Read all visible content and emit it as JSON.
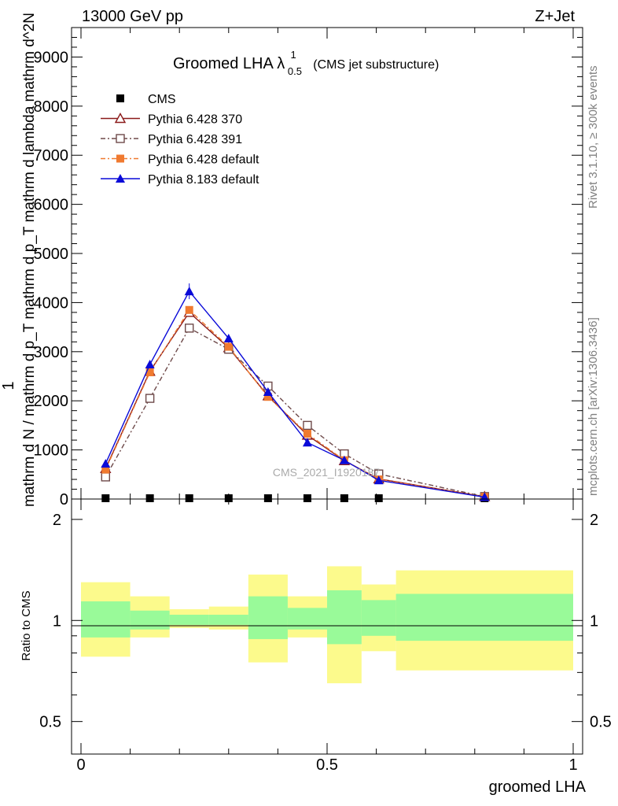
{
  "header": {
    "energy_label": "13000 GeV pp",
    "process_label": "Z+Jet"
  },
  "side_labels": {
    "rivet": "Rivet 3.1.10, ≥ 300k events",
    "mcplots": "mcplots.cern.ch [arXiv:1306.3436]"
  },
  "watermark": "CMS_2021_I1920187",
  "chart_data": [
    {
      "panel": "main",
      "type": "line",
      "title": "Groomed LHA λ",
      "title_superscript": "1",
      "title_subscript": "0.5",
      "title_suffix": "(CMS jet substructure)",
      "ylabel_numerator": "1",
      "ylabel": "mathrm d N / mathrm d p_T mathrm d p_T mathrm d lambda mathrm d^2N",
      "xlim": [
        -0.02,
        1.0
      ],
      "ylim": [
        0,
        9600
      ],
      "yticks": [
        0,
        1000,
        2000,
        3000,
        4000,
        5000,
        6000,
        7000,
        8000,
        9000
      ],
      "ytick_labels": [
        "0",
        "1000",
        "2000",
        "3000",
        "4000",
        "5000",
        "6000",
        "7000",
        "8000",
        "9000"
      ],
      "legend_position": "top-left",
      "x": [
        0.05,
        0.14,
        0.22,
        0.3,
        0.38,
        0.46,
        0.535,
        0.605,
        0.82
      ],
      "series": [
        {
          "name": "CMS",
          "color": "#000000",
          "marker": "square-filled",
          "values": [
            0,
            0,
            0,
            0,
            0,
            0,
            0,
            0,
            0
          ]
        },
        {
          "name": "Pythia 6.428 370",
          "color": "#8b1a1a",
          "marker": "triangle-open",
          "line": "solid",
          "values": [
            620,
            2600,
            3800,
            3080,
            2100,
            1300,
            780,
            410,
            50
          ]
        },
        {
          "name": "Pythia 6.428 391",
          "color": "#6e4a4a",
          "marker": "square-open",
          "line": "dashdot",
          "values": [
            450,
            2050,
            3480,
            3050,
            2300,
            1500,
            920,
            510,
            50
          ]
        },
        {
          "name": "Pythia 6.428 default",
          "color": "#f07a30",
          "marker": "square-filled",
          "line": "dashdot",
          "values": [
            600,
            2580,
            3850,
            3100,
            2080,
            1330,
            790,
            400,
            45
          ]
        },
        {
          "name": "Pythia 8.183 default",
          "color": "#0a0ad8",
          "marker": "triangle-filled",
          "line": "solid",
          "values": [
            720,
            2740,
            4230,
            3270,
            2180,
            1150,
            790,
            380,
            40
          ]
        }
      ]
    },
    {
      "panel": "ratio",
      "type": "area",
      "ylabel": "Ratio to CMS",
      "xlabel": "groomed LHA",
      "ylim": [
        0.4,
        2.3
      ],
      "yscale": "log",
      "yticks": [
        0.5,
        1,
        2
      ],
      "ytick_labels": [
        "0.5",
        "1",
        "2"
      ],
      "xticks": [
        0,
        0.5,
        1
      ],
      "xtick_labels": [
        "0",
        "0.5",
        "1"
      ],
      "band_colors": {
        "inner": "#99fa99",
        "outer": "#fcfa8c"
      },
      "bins": [
        {
          "lo": 0.0,
          "hi": 0.1,
          "inner": [
            0.89,
            1.14
          ],
          "outer": [
            0.78,
            1.3
          ]
        },
        {
          "lo": 0.1,
          "hi": 0.18,
          "inner": [
            0.94,
            1.07
          ],
          "outer": [
            0.89,
            1.18
          ]
        },
        {
          "lo": 0.18,
          "hi": 0.26,
          "inner": [
            0.97,
            1.04
          ],
          "outer": [
            0.95,
            1.08
          ]
        },
        {
          "lo": 0.26,
          "hi": 0.34,
          "inner": [
            0.97,
            1.04
          ],
          "outer": [
            0.94,
            1.1
          ]
        },
        {
          "lo": 0.34,
          "hi": 0.42,
          "inner": [
            0.88,
            1.18
          ],
          "outer": [
            0.75,
            1.37
          ]
        },
        {
          "lo": 0.42,
          "hi": 0.5,
          "inner": [
            0.94,
            1.09
          ],
          "outer": [
            0.89,
            1.18
          ]
        },
        {
          "lo": 0.5,
          "hi": 0.57,
          "inner": [
            0.85,
            1.23
          ],
          "outer": [
            0.65,
            1.45
          ]
        },
        {
          "lo": 0.57,
          "hi": 0.64,
          "inner": [
            0.9,
            1.15
          ],
          "outer": [
            0.81,
            1.28
          ]
        },
        {
          "lo": 0.64,
          "hi": 1.0,
          "inner": [
            0.87,
            1.2
          ],
          "outer": [
            0.71,
            1.41
          ]
        }
      ]
    }
  ]
}
